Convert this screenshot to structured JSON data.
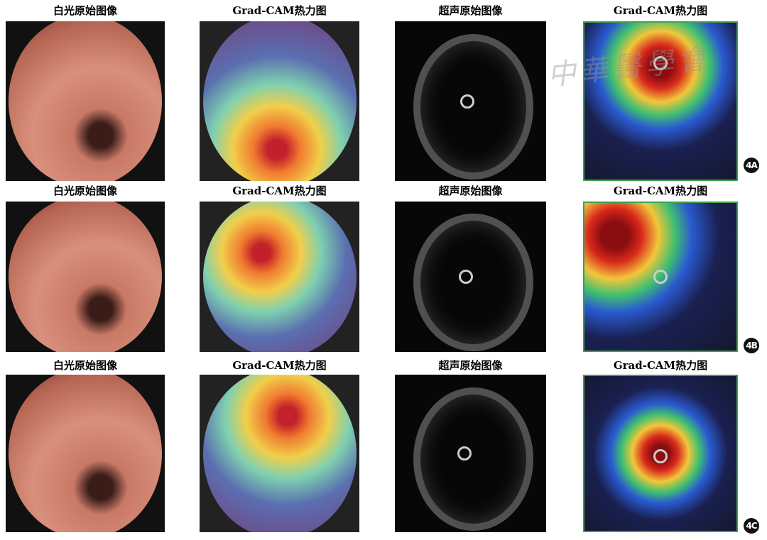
{
  "watermark": "中華醫學會",
  "rows": [
    {
      "label": "4A",
      "titles": [
        "白光原始图像",
        "Grad-CAM热力图",
        "超声原始图像",
        "Grad-CAM热力图"
      ]
    },
    {
      "label": "4B",
      "titles": [
        "白光原始图像",
        "Grad-CAM热力图",
        "超声原始图像",
        "Grad-CAM热力图"
      ]
    },
    {
      "label": "4C",
      "titles": [
        "白光原始图像",
        "Grad-CAM热力图",
        "超声原始图像",
        "Grad-CAM热力图"
      ]
    }
  ]
}
